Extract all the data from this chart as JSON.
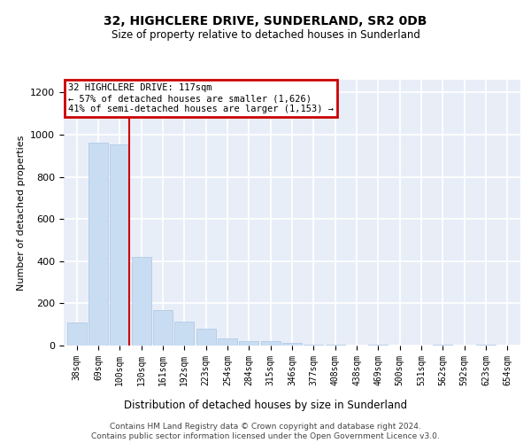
{
  "title": "32, HIGHCLERE DRIVE, SUNDERLAND, SR2 0DB",
  "subtitle": "Size of property relative to detached houses in Sunderland",
  "xlabel": "Distribution of detached houses by size in Sunderland",
  "ylabel": "Number of detached properties",
  "categories": [
    "38sqm",
    "69sqm",
    "100sqm",
    "130sqm",
    "161sqm",
    "192sqm",
    "223sqm",
    "254sqm",
    "284sqm",
    "315sqm",
    "346sqm",
    "377sqm",
    "408sqm",
    "438sqm",
    "469sqm",
    "500sqm",
    "531sqm",
    "562sqm",
    "592sqm",
    "623sqm",
    "654sqm"
  ],
  "values": [
    110,
    960,
    955,
    420,
    170,
    115,
    80,
    35,
    20,
    20,
    12,
    5,
    5,
    0,
    5,
    0,
    0,
    5,
    0,
    5,
    0
  ],
  "bar_color": "#c9ddf2",
  "bar_edge_color": "#aac4e0",
  "bg_color": "#e8eef8",
  "grid_color": "#ffffff",
  "ylim": [
    0,
    1260
  ],
  "yticks": [
    0,
    200,
    400,
    600,
    800,
    1000,
    1200
  ],
  "property_line_color": "#cc0000",
  "annotation_text": "32 HIGHCLERE DRIVE: 117sqm\n← 57% of detached houses are smaller (1,626)\n41% of semi-detached houses are larger (1,153) →",
  "annotation_box_color": "#cc0000",
  "footer_line1": "Contains HM Land Registry data © Crown copyright and database right 2024.",
  "footer_line2": "Contains public sector information licensed under the Open Government Licence v3.0."
}
